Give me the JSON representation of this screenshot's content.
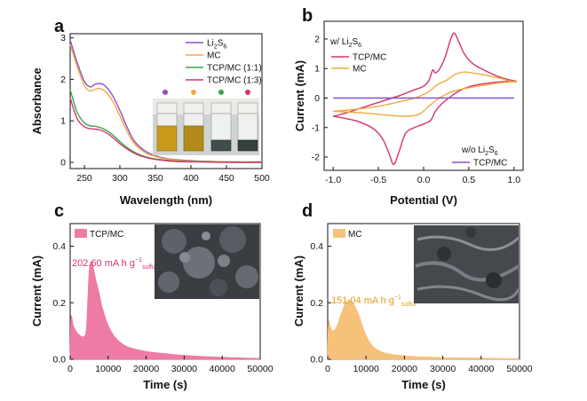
{
  "colors": {
    "li2s6": "#8a4fc9",
    "mc": "#f2a93b",
    "tcp11": "#3aa64a",
    "tcp13": "#d6336c",
    "tcp_fill": "#ee7ba6",
    "mc_fill": "#f6c27a"
  },
  "panels": {
    "a": {
      "letter": "a",
      "xlabel": "Wavelength (nm)",
      "ylabel": "Absorbance",
      "legend": [
        "Li",
        "MC",
        "TCP/MC (1:1)",
        "TCP/MC (1:3)"
      ],
      "legend_sub": {
        "li2s6": [
          "2",
          "6"
        ]
      },
      "legend_text_extra": "S",
      "vial_dots": [
        "#8a4fc9",
        "#f2a93b",
        "#3aa64a",
        "#d6336c"
      ]
    },
    "b": {
      "letter": "b",
      "xlabel": "Potential (V)",
      "ylabel": "Current (mA)",
      "legend_head": "w/ Li",
      "legend_head2": "w/o Li",
      "legend_items": [
        "TCP/MC",
        "MC"
      ],
      "legend_item2": "TCP/MC"
    },
    "c": {
      "letter": "c",
      "xlabel": "Time (s)",
      "ylabel": "Current (mA)",
      "legend": "TCP/MC",
      "annotation": "202.60 mA h g",
      "annotation_sup": "−1",
      "annotation_sub": "sulfur"
    },
    "d": {
      "letter": "d",
      "xlabel": "Time (s)",
      "ylabel": "Current (mA)",
      "legend": "MC",
      "annotation": "151.04 mA h g",
      "annotation_sup": "−1",
      "annotation_sub": "sulfur"
    }
  },
  "chart_data": [
    {
      "type": "line",
      "panel": "a",
      "xlabel": "Wavelength (nm)",
      "ylabel": "Absorbance",
      "xlim": [
        230,
        500
      ],
      "ylim": [
        -0.15,
        3.1
      ],
      "xticks": [
        250,
        300,
        350,
        400,
        450,
        500
      ],
      "yticks": [
        0,
        1,
        2,
        3
      ],
      "legend_position": "top-right",
      "series": [
        {
          "name": "Li2S6",
          "key": "li2s6",
          "x": [
            230,
            240,
            250,
            258,
            265,
            272,
            280,
            290,
            300,
            310,
            320,
            335,
            350,
            370,
            400,
            430,
            460,
            500
          ],
          "y": [
            2.95,
            2.4,
            1.95,
            1.82,
            1.88,
            1.9,
            1.83,
            1.6,
            1.25,
            0.85,
            0.52,
            0.28,
            0.16,
            0.08,
            0.04,
            0.02,
            0.01,
            0.01
          ]
        },
        {
          "name": "MC",
          "key": "mc",
          "x": [
            230,
            240,
            250,
            258,
            265,
            272,
            280,
            290,
            300,
            310,
            320,
            335,
            350,
            370,
            400,
            430,
            460,
            500
          ],
          "y": [
            2.85,
            2.3,
            1.85,
            1.72,
            1.76,
            1.78,
            1.7,
            1.47,
            1.12,
            0.75,
            0.46,
            0.24,
            0.14,
            0.07,
            0.03,
            0.02,
            0.01,
            0.01
          ]
        },
        {
          "name": "TCP/MC (1:1)",
          "key": "tcp11",
          "x": [
            230,
            240,
            250,
            258,
            265,
            272,
            280,
            290,
            300,
            315,
            330,
            350,
            380,
            420,
            460,
            500
          ],
          "y": [
            1.75,
            1.2,
            0.95,
            0.88,
            0.87,
            0.84,
            0.78,
            0.66,
            0.5,
            0.3,
            0.17,
            0.08,
            0.03,
            0.01,
            0.0,
            0.0
          ]
        },
        {
          "name": "TCP/MC (1:3)",
          "key": "tcp13",
          "x": [
            230,
            240,
            250,
            258,
            265,
            272,
            280,
            290,
            300,
            315,
            330,
            350,
            380,
            420,
            460,
            500
          ],
          "y": [
            1.55,
            1.05,
            0.86,
            0.81,
            0.8,
            0.78,
            0.72,
            0.6,
            0.45,
            0.27,
            0.15,
            0.07,
            0.02,
            0.01,
            0.0,
            0.0
          ]
        }
      ]
    },
    {
      "type": "line",
      "panel": "b",
      "xlabel": "Potential (V)",
      "ylabel": "Current (mA)",
      "xlim": [
        -1.1,
        1.1
      ],
      "ylim": [
        -2.45,
        2.6
      ],
      "xticks": [
        -1.0,
        -0.5,
        0.0,
        0.5,
        1.0
      ],
      "yticks": [
        -2,
        -1,
        0,
        1,
        2
      ],
      "series": [
        {
          "name": "TCP/MC",
          "key": "tcp13",
          "group": "w/ Li2S6",
          "x": [
            -1.0,
            -0.85,
            -0.7,
            -0.55,
            -0.45,
            -0.38,
            -0.33,
            -0.27,
            -0.2,
            -0.1,
            0.0,
            0.08,
            0.13,
            0.2,
            0.3,
            0.4,
            0.5,
            0.6,
            0.7,
            0.85,
            1.0,
            1.0,
            0.85,
            0.7,
            0.55,
            0.45,
            0.39,
            0.34,
            0.3,
            0.24,
            0.18,
            0.13,
            0.1,
            0.06,
            0.0,
            -0.1,
            -0.25,
            -0.4,
            -0.55,
            -0.7,
            -0.85,
            -1.0
          ],
          "y": [
            -0.62,
            -0.7,
            -0.82,
            -1.05,
            -1.4,
            -1.9,
            -2.25,
            -1.8,
            -1.2,
            -1.0,
            -0.88,
            -0.75,
            -0.45,
            -0.2,
            0.05,
            0.25,
            0.38,
            0.45,
            0.5,
            0.55,
            0.58,
            0.58,
            0.7,
            0.9,
            1.15,
            1.5,
            1.9,
            2.2,
            2.0,
            1.4,
            1.0,
            0.85,
            0.95,
            0.6,
            0.4,
            0.28,
            0.1,
            -0.05,
            -0.2,
            -0.35,
            -0.5,
            -0.62
          ]
        },
        {
          "name": "MC",
          "key": "mc",
          "group": "w/ Li2S6",
          "x": [
            -1.0,
            -0.7,
            -0.4,
            -0.2,
            -0.05,
            0.05,
            0.15,
            0.3,
            0.5,
            0.7,
            0.85,
            1.0,
            1.0,
            0.8,
            0.6,
            0.45,
            0.35,
            0.25,
            0.15,
            0.05,
            -0.1,
            -0.3,
            -0.5,
            -0.75,
            -1.0
          ],
          "y": [
            -0.45,
            -0.5,
            -0.58,
            -0.62,
            -0.55,
            -0.3,
            -0.05,
            0.2,
            0.35,
            0.45,
            0.52,
            0.55,
            0.55,
            0.7,
            0.82,
            0.88,
            0.8,
            0.6,
            0.45,
            0.2,
            0.0,
            -0.15,
            -0.28,
            -0.38,
            -0.45
          ]
        },
        {
          "name": "TCP/MC",
          "key": "li2s6",
          "group": "w/o Li2S6",
          "x": [
            -1.0,
            1.0
          ],
          "y": [
            0.0,
            0.0
          ]
        }
      ]
    },
    {
      "type": "area",
      "panel": "c",
      "xlabel": "Time (s)",
      "ylabel": "Current (mA)",
      "xlim": [
        0,
        50000
      ],
      "ylim": [
        0,
        0.48
      ],
      "xticks": [
        0,
        10000,
        20000,
        30000,
        40000,
        50000
      ],
      "yticks": [
        0.0,
        0.2,
        0.4
      ],
      "legend": "TCP/MC",
      "annotation": "202.60 mA h g−1 sulfur",
      "series": [
        {
          "name": "TCP/MC",
          "key": "tcp_fill",
          "x": [
            0,
            200,
            800,
            1500,
            2500,
            3500,
            4200,
            4600,
            5000,
            5500,
            6000,
            6600,
            7500,
            8500,
            10000,
            12000,
            15000,
            20000,
            25000,
            30000,
            35000,
            40000,
            45000,
            50000
          ],
          "y": [
            0.0,
            0.15,
            0.12,
            0.1,
            0.085,
            0.08,
            0.1,
            0.2,
            0.31,
            0.345,
            0.33,
            0.29,
            0.24,
            0.18,
            0.12,
            0.075,
            0.045,
            0.028,
            0.02,
            0.014,
            0.01,
            0.007,
            0.005,
            0.003
          ]
        }
      ]
    },
    {
      "type": "area",
      "panel": "d",
      "xlabel": "Time (s)",
      "ylabel": "Current (mA)",
      "xlim": [
        0,
        50000
      ],
      "ylim": [
        0,
        0.48
      ],
      "xticks": [
        0,
        10000,
        20000,
        30000,
        40000,
        50000
      ],
      "yticks": [
        0.0,
        0.2,
        0.4
      ],
      "legend": "MC",
      "annotation": "151.04 mA h g−1 sulfur",
      "series": [
        {
          "name": "MC",
          "key": "mc_fill",
          "x": [
            0,
            200,
            800,
            1500,
            2500,
            3500,
            4500,
            5500,
            6200,
            7000,
            8000,
            9000,
            10000,
            11500,
            13000,
            15000,
            18000,
            22000,
            26000,
            30000,
            35000,
            40000,
            45000,
            50000
          ],
          "y": [
            0.0,
            0.13,
            0.11,
            0.1,
            0.12,
            0.16,
            0.195,
            0.21,
            0.205,
            0.19,
            0.16,
            0.12,
            0.085,
            0.05,
            0.033,
            0.022,
            0.015,
            0.01,
            0.008,
            0.006,
            0.005,
            0.004,
            0.003,
            0.002
          ]
        }
      ]
    }
  ]
}
